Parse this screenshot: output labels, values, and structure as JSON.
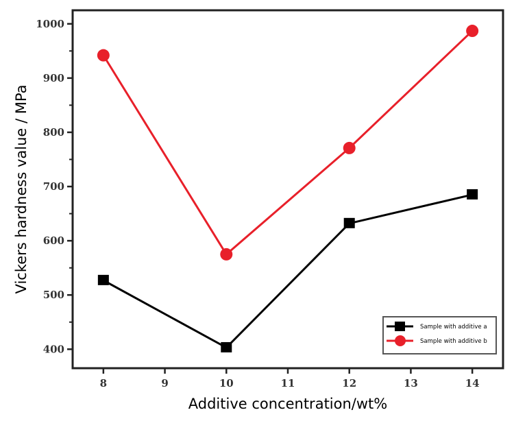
{
  "chart_data": {
    "type": "line",
    "title": "",
    "xlabel": "Additive concentration/wt%",
    "ylabel": "Vickers hardness value / MPa",
    "xlim": [
      7.5,
      14.5
    ],
    "ylim": [
      365,
      1025
    ],
    "xticks": [
      8,
      9,
      10,
      11,
      12,
      13,
      14
    ],
    "yticks": [
      400,
      500,
      600,
      700,
      800,
      900,
      1000
    ],
    "grid": false,
    "legend_position": "bottom-right",
    "x": [
      8,
      10,
      12,
      14
    ],
    "series": [
      {
        "name": "Sample with additive a",
        "values": [
          527,
          403,
          632,
          685
        ],
        "color": "#000000",
        "marker": "square"
      },
      {
        "name": "Sample with additive b",
        "values": [
          942,
          575,
          771,
          987
        ],
        "color": "#e8202a",
        "marker": "circle"
      }
    ]
  }
}
